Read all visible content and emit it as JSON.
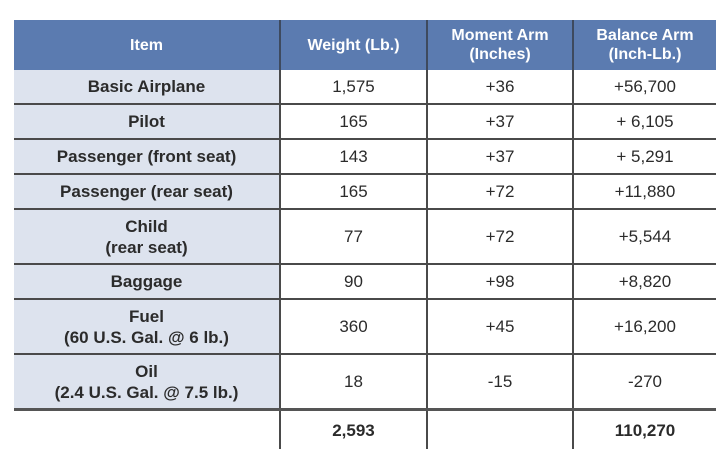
{
  "table": {
    "headers": [
      "Item",
      "Weight (Lb.)",
      "Moment Arm\n(Inches)",
      "Balance Arm\n(Inch-Lb.)"
    ],
    "header_color": "#5b7bb0",
    "item_column_color": "#dde3ee",
    "rows": [
      {
        "item": "Basic Airplane",
        "weight": "1,575",
        "moment_arm": "+36",
        "balance_arm": "+56,700"
      },
      {
        "item": "Pilot",
        "weight": "165",
        "moment_arm": "+37",
        "balance_arm": "+ 6,105"
      },
      {
        "item": "Passenger (front seat)",
        "weight": "143",
        "moment_arm": "+37",
        "balance_arm": "+ 5,291"
      },
      {
        "item": "Passenger (rear seat)",
        "weight": "165",
        "moment_arm": "+72",
        "balance_arm": "+11,880"
      },
      {
        "item": "Child",
        "item_sub": "(rear seat)",
        "weight": "77",
        "moment_arm": "+72",
        "balance_arm": "+5,544"
      },
      {
        "item": "Baggage",
        "weight": "90",
        "moment_arm": "+98",
        "balance_arm": "+8,820"
      },
      {
        "item": "Fuel",
        "item_sub": "(60 U.S. Gal. @ 6 lb.)",
        "weight": "360",
        "moment_arm": "+45",
        "balance_arm": "+16,200"
      },
      {
        "item": "Oil",
        "item_sub": "(2.4 U.S. Gal. @ 7.5 lb.)",
        "weight": "18",
        "moment_arm": "-15",
        "balance_arm": "-270"
      }
    ],
    "totals": {
      "weight": "2,593",
      "balance_arm": "110,270"
    }
  }
}
